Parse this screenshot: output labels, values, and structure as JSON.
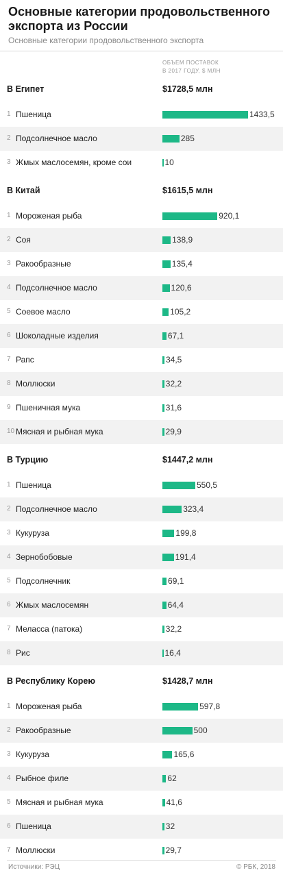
{
  "title": "Основные категории продовольственного экспорта из России",
  "subtitle": "Основные категории продовольственного экспорта",
  "column_header": [
    "ОБЪЕМ ПОСТАВОК",
    "В 2017 ГОДУ, $ МЛН"
  ],
  "colors": {
    "bar": "#1db887",
    "alt_row": "#f2f2f2"
  },
  "chart_data": {
    "type": "bar",
    "orientation": "horizontal",
    "unit": "$ млн",
    "groups": [
      {
        "name": "В Египет",
        "total": "$1728,5 млн",
        "rows": [
          {
            "rank": "1",
            "category": "Пшеница",
            "value": 1433.5,
            "label": "1433,5"
          },
          {
            "rank": "2",
            "category": "Подсолнечное масло",
            "value": 285,
            "label": "285"
          },
          {
            "rank": "3",
            "category": "Жмых маслосемян, кроме сои",
            "value": 10,
            "label": "10"
          }
        ]
      },
      {
        "name": "В Китай",
        "total": "$1615,5 млн",
        "rows": [
          {
            "rank": "1",
            "category": "Мороженая рыба",
            "value": 920.1,
            "label": "920,1"
          },
          {
            "rank": "2",
            "category": "Соя",
            "value": 138.9,
            "label": "138,9"
          },
          {
            "rank": "3",
            "category": "Ракообразные",
            "value": 135.4,
            "label": "135,4"
          },
          {
            "rank": "4",
            "category": "Подсолнечное масло",
            "value": 120.6,
            "label": "120,6"
          },
          {
            "rank": "5",
            "category": "Соевое масло",
            "value": 105.2,
            "label": "105,2"
          },
          {
            "rank": "6",
            "category": "Шоколадные изделия",
            "value": 67.1,
            "label": "67,1"
          },
          {
            "rank": "7",
            "category": "Рапс",
            "value": 34.5,
            "label": "34,5"
          },
          {
            "rank": "8",
            "category": "Моллюски",
            "value": 32.2,
            "label": "32,2"
          },
          {
            "rank": "9",
            "category": "Пшеничная мука",
            "value": 31.6,
            "label": "31,6"
          },
          {
            "rank": "10",
            "category": "Мясная и рыбная мука",
            "value": 29.9,
            "label": "29,9"
          }
        ]
      },
      {
        "name": "В Турцию",
        "total": "$1447,2 млн",
        "rows": [
          {
            "rank": "1",
            "category": "Пшеница",
            "value": 550.5,
            "label": "550,5"
          },
          {
            "rank": "2",
            "category": "Подсолнечное масло",
            "value": 323.4,
            "label": "323,4"
          },
          {
            "rank": "3",
            "category": "Кукуруза",
            "value": 199.8,
            "label": "199,8"
          },
          {
            "rank": "4",
            "category": "Зернобобовые",
            "value": 191.4,
            "label": "191,4"
          },
          {
            "rank": "5",
            "category": "Подсолнечник",
            "value": 69.1,
            "label": "69,1"
          },
          {
            "rank": "6",
            "category": "Жмых маслосемян",
            "value": 64.4,
            "label": "64,4"
          },
          {
            "rank": "7",
            "category": "Меласса (патока)",
            "value": 32.2,
            "label": "32,2"
          },
          {
            "rank": "8",
            "category": "Рис",
            "value": 16.4,
            "label": "16,4"
          }
        ]
      },
      {
        "name": "В Республику Корею",
        "total": "$1428,7 млн",
        "rows": [
          {
            "rank": "1",
            "category": "Мороженая рыба",
            "value": 597.8,
            "label": "597,8"
          },
          {
            "rank": "2",
            "category": "Ракообразные",
            "value": 500,
            "label": "500"
          },
          {
            "rank": "3",
            "category": "Кукуруза",
            "value": 165.6,
            "label": "165,6"
          },
          {
            "rank": "4",
            "category": "Рыбное филе",
            "value": 62,
            "label": "62"
          },
          {
            "rank": "5",
            "category": "Мясная и рыбная мука",
            "value": 41.6,
            "label": "41,6"
          },
          {
            "rank": "6",
            "category": "Пшеница",
            "value": 32,
            "label": "32"
          },
          {
            "rank": "7",
            "category": "Моллюски",
            "value": 29.7,
            "label": "29,7"
          }
        ]
      }
    ]
  },
  "footer": {
    "source": "Источники: РЭЦ",
    "copyright": "© РБК, 2018"
  }
}
